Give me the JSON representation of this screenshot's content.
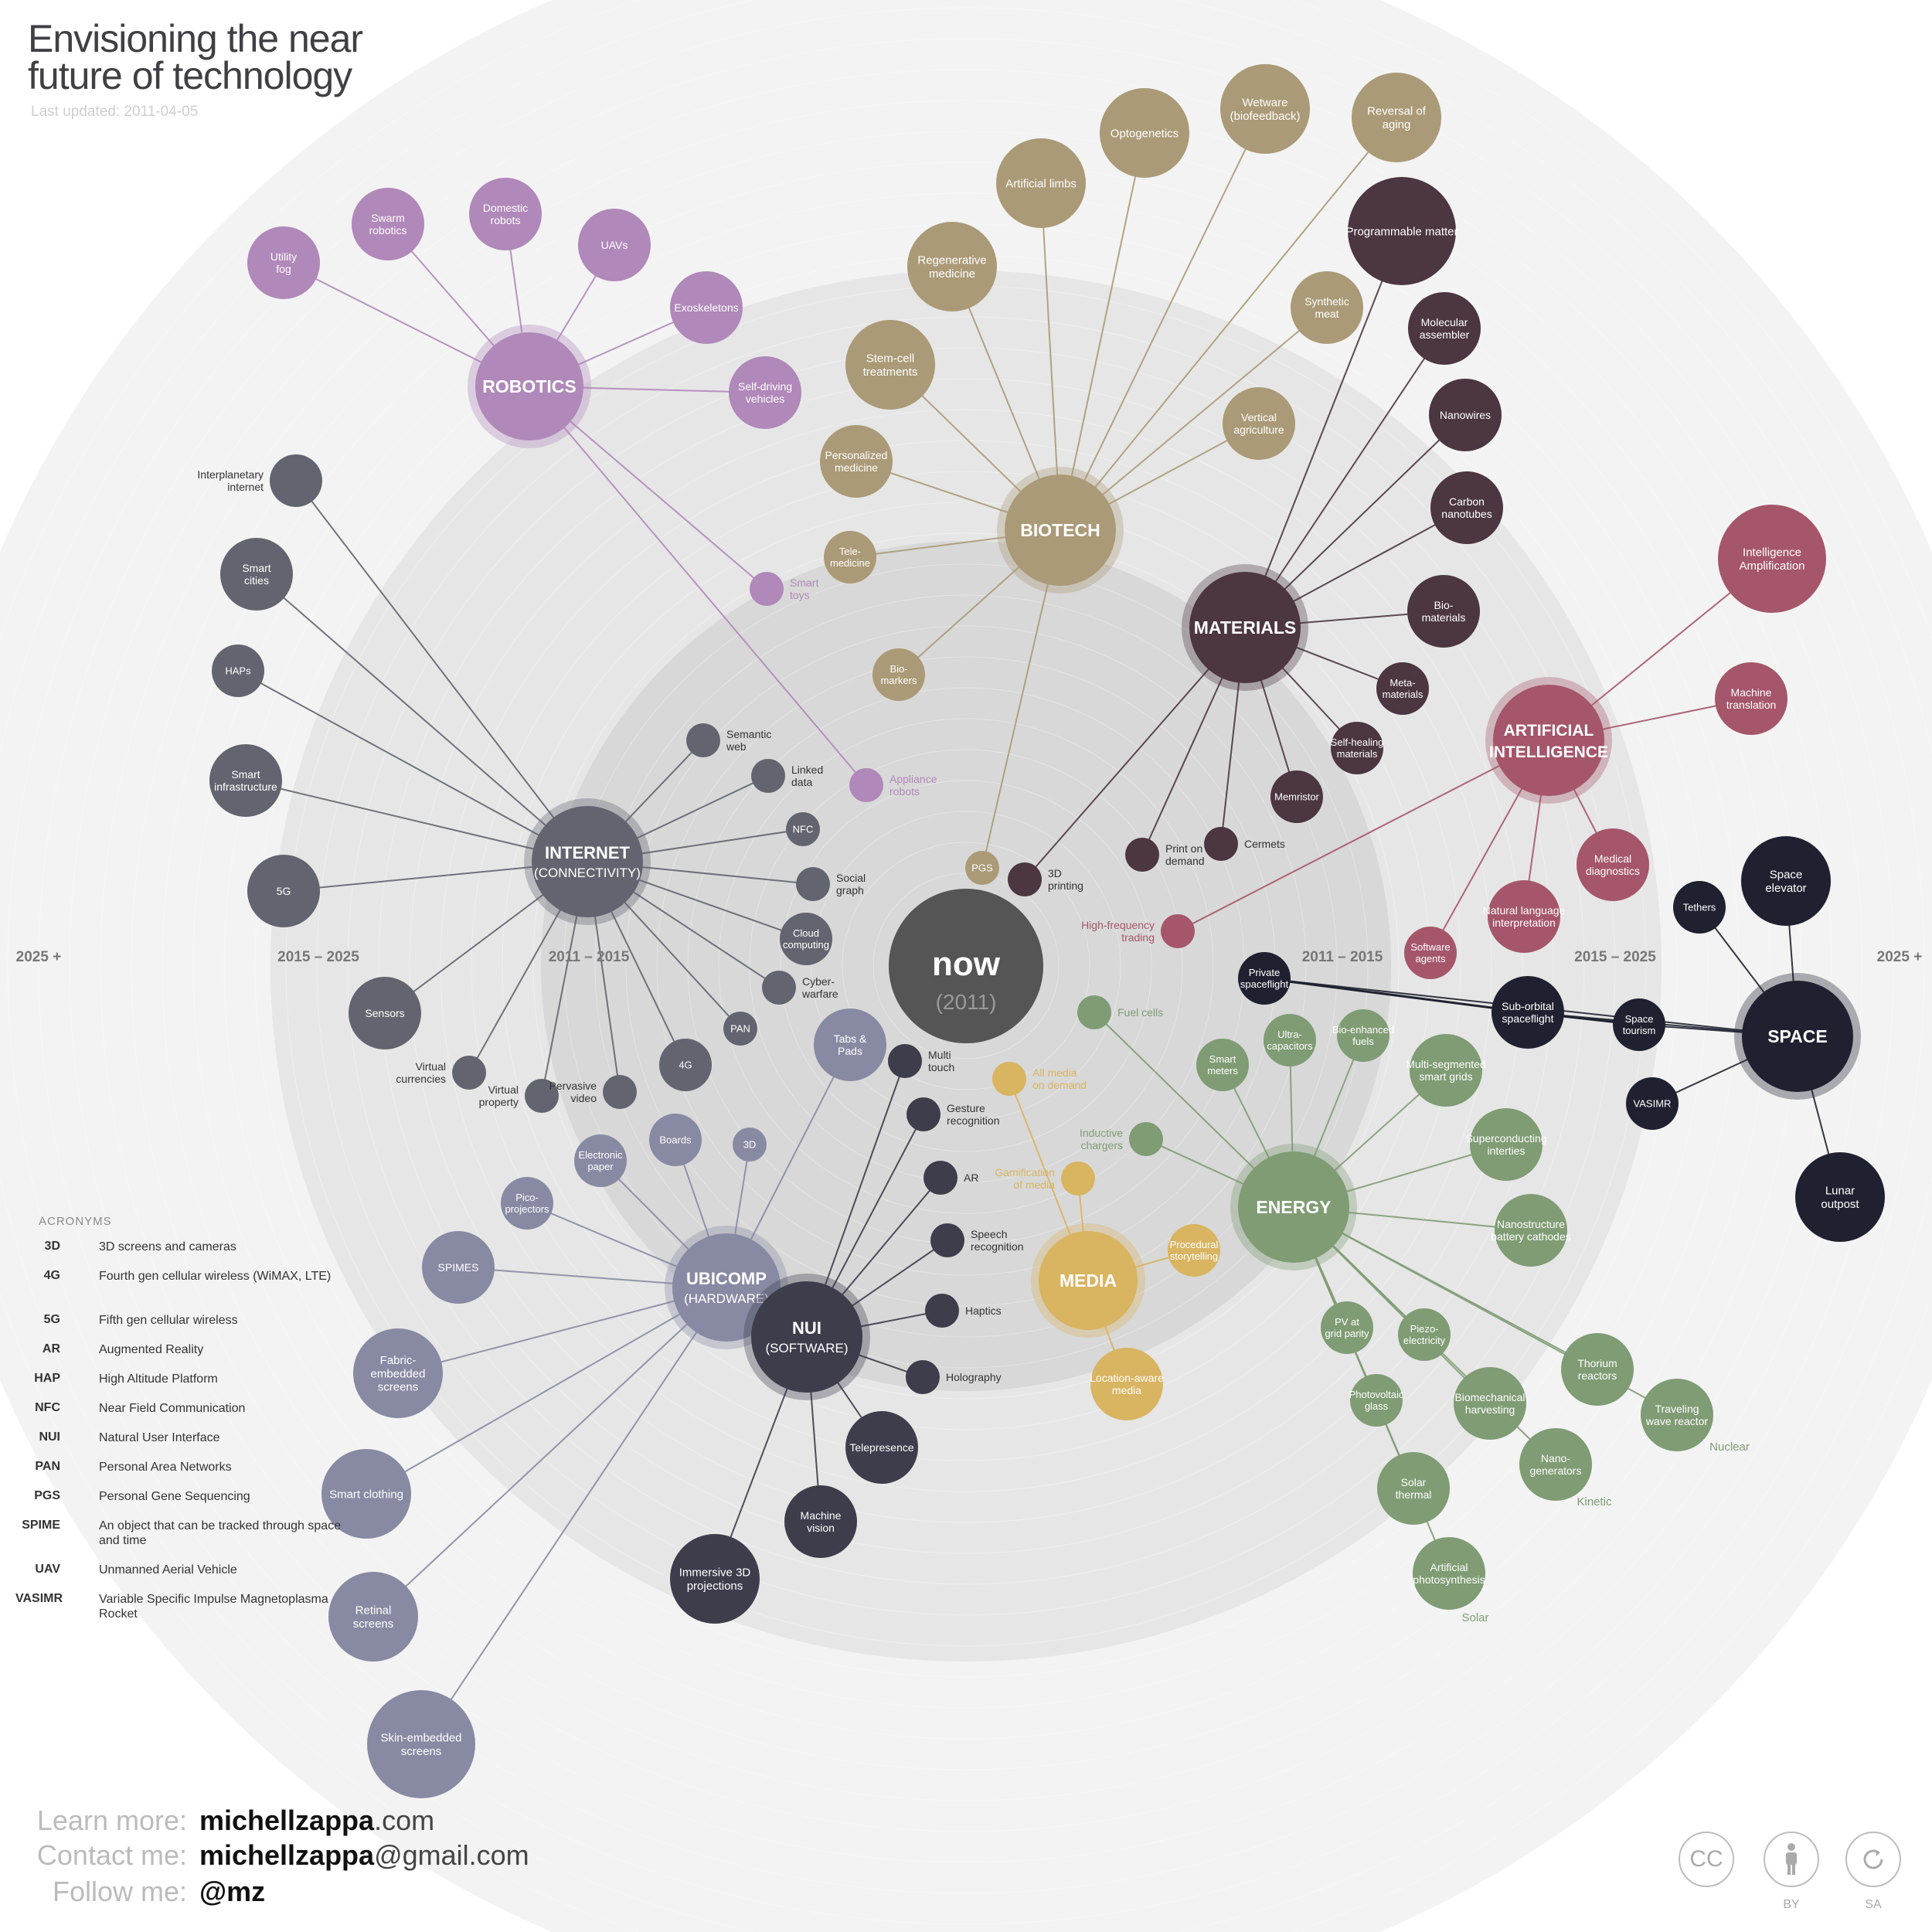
{
  "title_line1": "Envisioning the near",
  "title_line2": "future of technology",
  "last_updated": "Last updated: 2011-04-05",
  "ring_labels": [
    "2025 +",
    "2015 - 2025",
    "2011 - 2015",
    "2011 - 2015",
    "2015 - 2025",
    "2025 +"
  ],
  "center": {
    "label": "now",
    "sub": "(2011)"
  },
  "colors": {
    "robotics": "#b088b9",
    "biotech": "#ab9a77",
    "materials": "#4b3641",
    "ai": "#a5566a",
    "internet": "#62656f",
    "ubicomp": "#888aa3",
    "nui": "#3d3d4c",
    "media": "#d9b461",
    "energy": "#7f9c74",
    "space": "#1f2130",
    "ring_dark": "#d8d8d8",
    "ring_mid": "#e6e6e6",
    "ring_light": "#f3f3f3"
  },
  "hubs": [
    {
      "id": "robotics",
      "label": "ROBOTICS",
      "sub": ""
    },
    {
      "id": "biotech",
      "label": "BIOTECH",
      "sub": ""
    },
    {
      "id": "materials",
      "label": "MATERIALS",
      "sub": ""
    },
    {
      "id": "ai",
      "label": "ARTIFICIAL",
      "sub": "INTELLIGENCE"
    },
    {
      "id": "internet",
      "label": "INTERNET",
      "sub": "(CONNECTIVITY)"
    },
    {
      "id": "ubicomp",
      "label": "UBICOMP",
      "sub": "(HARDWARE)"
    },
    {
      "id": "nui",
      "label": "NUI",
      "sub": "(SOFTWARE)"
    },
    {
      "id": "media",
      "label": "MEDIA",
      "sub": ""
    },
    {
      "id": "energy",
      "label": "ENERGY",
      "sub": ""
    },
    {
      "id": "space",
      "label": "SPACE",
      "sub": ""
    }
  ],
  "nodes": [
    {
      "hub": "robotics",
      "text": "Utility\nfog"
    },
    {
      "hub": "robotics",
      "text": "Swarm\nrobotics"
    },
    {
      "hub": "robotics",
      "text": "Domestic\nrobots"
    },
    {
      "hub": "robotics",
      "text": "UAVs"
    },
    {
      "hub": "robotics",
      "text": "Exoskeletons"
    },
    {
      "hub": "robotics",
      "text": "Self-driving\nvehicles"
    },
    {
      "hub": "robotics",
      "text": "Smart\ntoys"
    },
    {
      "hub": "robotics",
      "text": "Appliance\nrobots"
    },
    {
      "hub": "biotech",
      "text": "Artificial limbs"
    },
    {
      "hub": "biotech",
      "text": "Optogenetics"
    },
    {
      "hub": "biotech",
      "text": "Wetware\n(biofeedback)"
    },
    {
      "hub": "biotech",
      "text": "Reversal of\naging"
    },
    {
      "hub": "biotech",
      "text": "Regenerative\nmedicine"
    },
    {
      "hub": "biotech",
      "text": "Synthetic\nmeat"
    },
    {
      "hub": "biotech",
      "text": "Stem-cell\ntreatments"
    },
    {
      "hub": "biotech",
      "text": "Vertical\nagriculture"
    },
    {
      "hub": "biotech",
      "text": "Personalized\nmedicine"
    },
    {
      "hub": "biotech",
      "text": "Tele-\nmedicine"
    },
    {
      "hub": "biotech",
      "text": "Bio-\nmarkers"
    },
    {
      "hub": "biotech",
      "text": "PGS"
    },
    {
      "hub": "materials",
      "text": "Programmable matter"
    },
    {
      "hub": "materials",
      "text": "Molecular\nassembler"
    },
    {
      "hub": "materials",
      "text": "Nanowires"
    },
    {
      "hub": "materials",
      "text": "Carbon\nnanotubes"
    },
    {
      "hub": "materials",
      "text": "Bio-\nmaterials"
    },
    {
      "hub": "materials",
      "text": "Meta-\nmaterials"
    },
    {
      "hub": "materials",
      "text": "Self-healing\nmaterials"
    },
    {
      "hub": "materials",
      "text": "Memristor"
    },
    {
      "hub": "materials",
      "text": "Cermets"
    },
    {
      "hub": "materials",
      "text": "Print on\ndemand"
    },
    {
      "hub": "materials",
      "text": "3D\nprinting"
    },
    {
      "hub": "ai",
      "text": "Intelligence\nAmplification"
    },
    {
      "hub": "ai",
      "text": "Machine\ntranslation"
    },
    {
      "hub": "ai",
      "text": "Medical\ndiagnostics"
    },
    {
      "hub": "ai",
      "text": "Natural language\ninterpretation"
    },
    {
      "hub": "ai",
      "text": "Software\nagents"
    },
    {
      "hub": "ai",
      "text": "High-frequency\ntrading"
    },
    {
      "hub": "internet",
      "text": "Interplanetary\ninternet"
    },
    {
      "hub": "internet",
      "text": "Smart\ncities"
    },
    {
      "hub": "internet",
      "text": "HAPs"
    },
    {
      "hub": "internet",
      "text": "Smart\ninfrastructure"
    },
    {
      "hub": "internet",
      "text": "5G"
    },
    {
      "hub": "internet",
      "text": "Sensors"
    },
    {
      "hub": "internet",
      "text": "Virtual\ncurrencies"
    },
    {
      "hub": "internet",
      "text": "Virtual\nproperty"
    },
    {
      "hub": "internet",
      "text": "Pervasive\nvideo"
    },
    {
      "hub": "internet",
      "text": "4G"
    },
    {
      "hub": "internet",
      "text": "PAN"
    },
    {
      "hub": "internet",
      "text": "Cyber-\nwarfare"
    },
    {
      "hub": "internet",
      "text": "Cloud\ncomputing"
    },
    {
      "hub": "internet",
      "text": "Social\ngraph"
    },
    {
      "hub": "internet",
      "text": "NFC"
    },
    {
      "hub": "internet",
      "text": "Linked\ndata"
    },
    {
      "hub": "internet",
      "text": "Semantic\nweb"
    },
    {
      "hub": "ubicomp",
      "text": "Tabs &\nPads"
    },
    {
      "hub": "ubicomp",
      "text": "3D"
    },
    {
      "hub": "ubicomp",
      "text": "Boards"
    },
    {
      "hub": "ubicomp",
      "text": "Electronic\npaper"
    },
    {
      "hub": "ubicomp",
      "text": "Pico-\nprojectors"
    },
    {
      "hub": "ubicomp",
      "text": "SPIMES"
    },
    {
      "hub": "ubicomp",
      "text": "Fabric-\nembedded\nscreens"
    },
    {
      "hub": "ubicomp",
      "text": "Smart clothing"
    },
    {
      "hub": "ubicomp",
      "text": "Retinal\nscreens"
    },
    {
      "hub": "ubicomp",
      "text": "Skin-embedded\nscreens"
    },
    {
      "hub": "nui",
      "text": "Multi\ntouch"
    },
    {
      "hub": "nui",
      "text": "Gesture\nrecognition"
    },
    {
      "hub": "nui",
      "text": "AR"
    },
    {
      "hub": "nui",
      "text": "Speech\nrecognition"
    },
    {
      "hub": "nui",
      "text": "Haptics"
    },
    {
      "hub": "nui",
      "text": "Holography"
    },
    {
      "hub": "nui",
      "text": "Telepresence"
    },
    {
      "hub": "nui",
      "text": "Machine\nvision"
    },
    {
      "hub": "nui",
      "text": "Immersive 3D\nprojections"
    },
    {
      "hub": "media",
      "text": "All media\non demand"
    },
    {
      "hub": "media",
      "text": "Gamification\nof media"
    },
    {
      "hub": "media",
      "text": "Procedural\nstorytelling"
    },
    {
      "hub": "media",
      "text": "Location-aware\nmedia"
    },
    {
      "hub": "energy",
      "text": "Fuel cells"
    },
    {
      "hub": "energy",
      "text": "Inductive\nchargers"
    },
    {
      "hub": "energy",
      "text": "Smart\nmeters"
    },
    {
      "hub": "energy",
      "text": "Ultra-\ncapacitors"
    },
    {
      "hub": "energy",
      "text": "Bio-enhanced\nfuels"
    },
    {
      "hub": "energy",
      "text": "Multi-segmented\nsmart grids"
    },
    {
      "hub": "energy",
      "text": "Superconducting\ninterties"
    },
    {
      "hub": "energy",
      "text": "Nanostructure\nbattery cathodes"
    },
    {
      "hub": "energy",
      "text": "PV at\ngrid parity"
    },
    {
      "hub": "energy",
      "text": "Piezo-\nelectricity"
    },
    {
      "hub": "energy",
      "text": "Photovoltaic\nglass"
    },
    {
      "hub": "energy",
      "text": "Biomechanical\nharvesting"
    },
    {
      "hub": "energy",
      "text": "Thorium\nreactors"
    },
    {
      "hub": "energy",
      "text": "Traveling\nwave reactor"
    },
    {
      "hub": "energy",
      "text": "Nano-\ngenerators"
    },
    {
      "hub": "energy",
      "text": "Solar\nthermal"
    },
    {
      "hub": "energy",
      "text": "Artificial\nphotosynthesis"
    },
    {
      "hub": "space",
      "text": "Space\nelevator"
    },
    {
      "hub": "space",
      "text": "Tethers"
    },
    {
      "hub": "space",
      "text": "Space\ntourism"
    },
    {
      "hub": "space",
      "text": "Sub-orbital\nspaceflight"
    },
    {
      "hub": "space",
      "text": "Private\nspaceflight"
    },
    {
      "hub": "space",
      "text": "VASIMR"
    },
    {
      "hub": "space",
      "text": "Lunar\noutpost"
    }
  ],
  "group_labels": [
    "Nuclear",
    "Kinetic",
    "Solar"
  ],
  "acronyms_title": "ACRONYMS",
  "acronyms": [
    {
      "k": "3D",
      "v": "3D screens and cameras"
    },
    {
      "k": "4G",
      "v": "Fourth gen cellular wireless (WiMAX, LTE)"
    },
    {
      "k": "5G",
      "v": "Fifth gen cellular wireless"
    },
    {
      "k": "AR",
      "v": "Augmented Reality"
    },
    {
      "k": "HAP",
      "v": "High Altitude Platform"
    },
    {
      "k": "NFC",
      "v": "Near Field Communication"
    },
    {
      "k": "NUI",
      "v": "Natural User Interface"
    },
    {
      "k": "PAN",
      "v": "Personal Area Networks"
    },
    {
      "k": "PGS",
      "v": "Personal Gene Sequencing"
    },
    {
      "k": "SPIME",
      "v": "An object that can be tracked through space and time"
    },
    {
      "k": "UAV",
      "v": "Unmanned Aerial Vehicle"
    },
    {
      "k": "VASIMR",
      "v": "Variable Specific Impulse Magnetoplasma Rocket"
    }
  ],
  "contact": {
    "learn_label": "Learn more:",
    "learn_bold": "michellzappa",
    "learn_rest": ".com",
    "contact_label": "Contact me:",
    "contact_bold": "michellzappa",
    "contact_rest": "@gmail.com",
    "follow_label": "Follow me:",
    "follow_value": "@mz"
  },
  "license": {
    "cc": "CC",
    "by": "BY",
    "sa": "SA"
  }
}
